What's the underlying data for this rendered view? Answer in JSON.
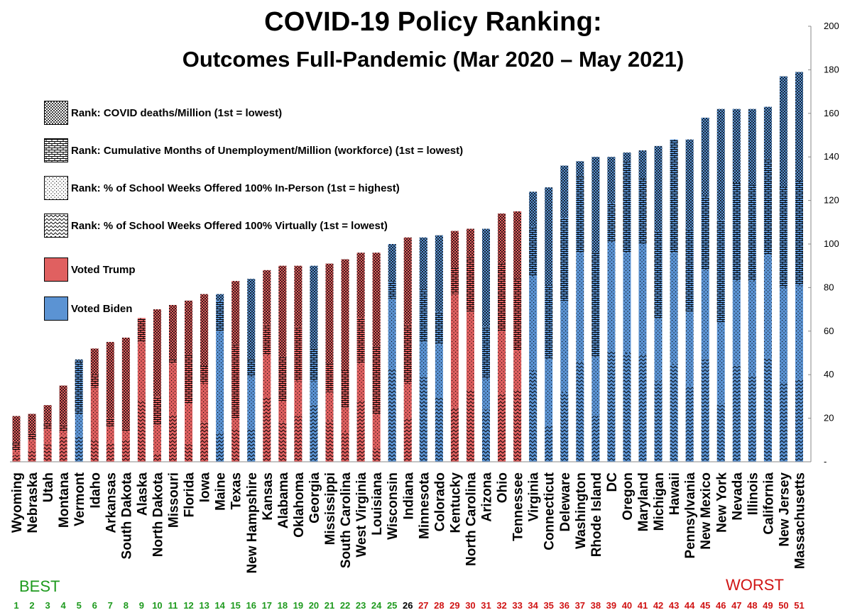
{
  "title": "COVID-19 Policy Ranking:",
  "subtitle": "Outcomes Full-Pandemic (Mar 2020 – May 2021)",
  "legend": {
    "deaths": "Rank: COVID deaths/Million (1st = lowest)",
    "unemployment": "Rank: Cumulative Months of Unemployment/Million (workforce) (1st = lowest)",
    "inperson": "Rank: % of School Weeks Offered 100% In-Person (1st = highest)",
    "virtual": "Rank: % of School Weeks Offered 100% Virtually (1st = lowest)",
    "trump": "Voted Trump",
    "biden": "Voted Biden"
  },
  "best_label": "BEST",
  "worst_label": "WORST",
  "colors": {
    "trump": "#e06060",
    "biden": "#5b93d3",
    "best": "#1e9a1e",
    "worst": "#d01414",
    "rank26": "#000000"
  },
  "chart_data": {
    "type": "bar",
    "stacked": true,
    "y_axis_side": "right",
    "ylim": [
      0,
      200
    ],
    "ytick_labels": [
      "-",
      "20",
      "40",
      "60",
      "80",
      "100",
      "120",
      "140",
      "160",
      "180",
      "200"
    ],
    "legend_placement": "top-left",
    "categories": [
      "Wyoming",
      "Nebraska",
      "Utah",
      "Montana",
      "Vermont",
      "Idaho",
      "Arkansas",
      "South Dakota",
      "Alaska",
      "North Dakota",
      "Missouri",
      "Florida",
      "Iowa",
      "Maine",
      "Texas",
      "New Hampshire",
      "Kansas",
      "Alabama",
      "Oklahoma",
      "Georgia",
      "Mississippi",
      "South Carolina",
      "West Virginia",
      "Louisiana",
      "Wisconsin",
      "Indiana",
      "Minnesota",
      "Colorado",
      "Kentucky",
      "North Carolina",
      "Arizona",
      "Ohio",
      "Tennessee",
      "Virginia",
      "Connecticut",
      "Deleware",
      "Washington",
      "Rhode Island",
      "DC",
      "Oregon",
      "Maryland",
      "Michigan",
      "Hawaii",
      "Pennsylvania",
      "New Mexico",
      "New York",
      "Nevada",
      "Illinois",
      "California",
      "New Jersey",
      "Massachusetts"
    ],
    "ranks": [
      "1",
      "2",
      "3",
      "4",
      "5",
      "6",
      "7",
      "8",
      "9",
      "10",
      "11",
      "12",
      "13",
      "14",
      "15",
      "16",
      "17",
      "18",
      "19",
      "20",
      "21",
      "22",
      "23",
      "24",
      "25",
      "26",
      "27",
      "28",
      "29",
      "30",
      "31",
      "32",
      "33",
      "34",
      "35",
      "36",
      "37",
      "38",
      "39",
      "40",
      "41",
      "42",
      "43",
      "44",
      "45",
      "46",
      "47",
      "48",
      "49",
      "50",
      "51"
    ],
    "vote": [
      "trump",
      "trump",
      "trump",
      "trump",
      "biden",
      "trump",
      "trump",
      "trump",
      "trump",
      "trump",
      "trump",
      "trump",
      "trump",
      "biden",
      "trump",
      "biden",
      "trump",
      "trump",
      "trump",
      "biden",
      "trump",
      "trump",
      "trump",
      "trump",
      "biden",
      "trump",
      "biden",
      "biden",
      "trump",
      "trump",
      "biden",
      "trump",
      "trump",
      "biden",
      "biden",
      "biden",
      "biden",
      "biden",
      "biden",
      "biden",
      "biden",
      "biden",
      "biden",
      "biden",
      "biden",
      "biden",
      "biden",
      "biden",
      "biden",
      "biden",
      "biden"
    ],
    "totals": [
      21,
      22,
      26,
      35,
      47,
      52,
      55,
      57,
      66,
      70,
      72,
      74,
      77,
      77,
      83,
      84,
      88,
      90,
      90,
      90,
      91,
      93,
      96,
      96,
      100,
      103,
      103,
      104,
      106,
      107,
      107,
      114,
      115,
      124,
      126,
      136,
      138,
      140,
      140,
      142,
      143,
      145,
      148,
      148,
      158,
      162,
      162,
      162,
      163,
      177,
      179
    ],
    "series": [
      {
        "name": "Rank: % of School Weeks Offered 100% Virtually (1st = lowest)",
        "pattern": "virtual",
        "values": [
          3,
          5,
          8,
          12,
          12,
          10,
          9,
          10,
          28,
          4,
          22,
          8,
          18,
          13,
          15,
          15,
          30,
          18,
          21,
          26,
          19,
          14,
          28,
          6,
          43,
          20,
          39,
          30,
          25,
          33,
          24,
          31,
          33,
          42,
          17,
          32,
          46,
          21,
          51,
          50,
          49,
          37,
          45,
          35,
          47,
          27,
          44,
          40,
          48,
          36,
          38
        ]
      },
      {
        "name": "Rank: % of School Weeks Offered 100% In-Person (1st = highest)",
        "pattern": "inperson",
        "values": [
          2,
          5,
          7,
          2,
          10,
          24,
          7,
          4,
          27,
          13,
          23,
          19,
          18,
          47,
          5,
          24,
          19,
          10,
          16,
          11,
          13,
          11,
          17,
          16,
          32,
          16,
          16,
          24,
          52,
          36,
          14,
          29,
          18,
          43,
          30,
          42,
          50,
          27,
          50,
          46,
          51,
          29,
          51,
          34,
          41,
          37,
          39,
          43,
          47,
          44,
          43
        ]
      },
      {
        "name": "Rank: Cumulative Months of Unemployment/Million (workforce) (1st = lowest)",
        "pattern": "unemployment",
        "values": [
          4,
          3,
          3,
          3,
          24,
          6,
          4,
          1,
          11,
          13,
          2,
          22,
          8,
          14,
          34,
          8,
          14,
          20,
          25,
          15,
          13,
          17,
          21,
          31,
          8,
          27,
          24,
          15,
          12,
          25,
          24,
          31,
          33,
          23,
          34,
          38,
          35,
          48,
          18,
          42,
          30,
          40,
          52,
          38,
          34,
          47,
          45,
          44,
          44,
          46,
          48
        ]
      },
      {
        "name": "Rank: COVID deaths/Million (1st = lowest)",
        "pattern": "deaths",
        "values": [
          12,
          9,
          8,
          18,
          1,
          12,
          35,
          42,
          0,
          40,
          25,
          25,
          33,
          3,
          29,
          37,
          25,
          42,
          28,
          38,
          46,
          51,
          30,
          43,
          17,
          40,
          24,
          35,
          17,
          13,
          45,
          23,
          31,
          16,
          45,
          24,
          7,
          44,
          21,
          4,
          13,
          39,
          0,
          41,
          36,
          51,
          34,
          35,
          24,
          51,
          50
        ]
      }
    ]
  }
}
